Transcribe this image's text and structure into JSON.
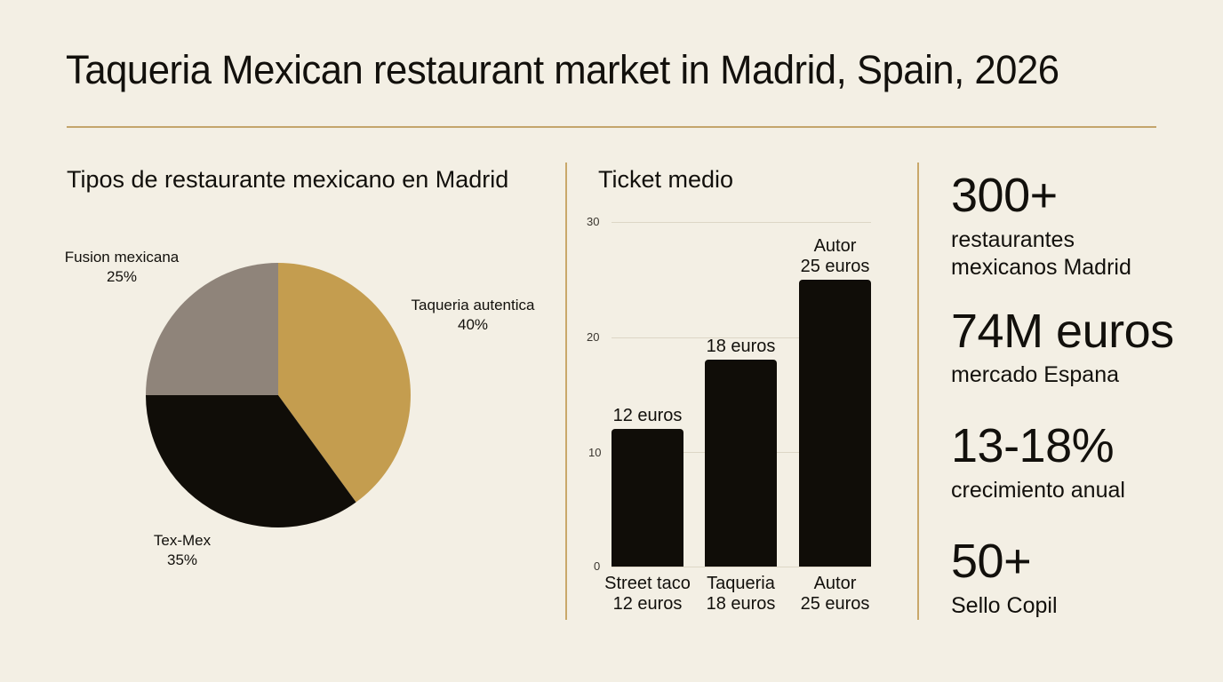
{
  "title": "Taqueria Mexican restaurant market in Madrid, Spain, 2026",
  "colors": {
    "background": "#f3efe4",
    "accent_rule": "#c4a56b",
    "gold": "#c49d4f",
    "taupe": "#8f847a",
    "black": "#100d08"
  },
  "pie": {
    "title": "Tipos de restaurante mexicano en Madrid",
    "slices": [
      {
        "label": "Taqueria autentica",
        "pct": "40%",
        "value": 40,
        "color": "#c49d4f"
      },
      {
        "label": "Tex-Mex",
        "pct": "35%",
        "value": 35,
        "color": "#100d08"
      },
      {
        "label": "Fusion mexicana",
        "pct": "25%",
        "value": 25,
        "color": "#8f847a"
      }
    ]
  },
  "bar": {
    "title": "Ticket medio",
    "ticks": [
      "30",
      "20",
      "10",
      "0"
    ],
    "bars": [
      {
        "category": "Street taco",
        "sub": "12 euros",
        "value": 12,
        "label": "12 euros",
        "label_top": ""
      },
      {
        "category": "Taqueria",
        "sub": "18 euros",
        "value": 18,
        "label": "18 euros",
        "label_top": ""
      },
      {
        "category": "Autor",
        "sub": "25 euros",
        "value": 25,
        "label": "25 euros",
        "label_top": "Autor"
      }
    ]
  },
  "stats": [
    {
      "value": "300+",
      "line1": "restaurantes",
      "line2": "mexicanos Madrid"
    },
    {
      "value": "74M euros",
      "line1": "mercado Espana",
      "line2": ""
    },
    {
      "value": "13-18%",
      "line1": "crecimiento anual",
      "line2": ""
    },
    {
      "value": "50+",
      "line1": "Sello Copil",
      "line2": ""
    }
  ],
  "chart_data": [
    {
      "type": "pie",
      "title": "Tipos de restaurante mexicano en Madrid",
      "categories": [
        "Taqueria autentica",
        "Tex-Mex",
        "Fusion mexicana"
      ],
      "values": [
        40,
        35,
        25
      ],
      "unit": "%",
      "colors": [
        "#c49d4f",
        "#100d08",
        "#8f847a"
      ]
    },
    {
      "type": "bar",
      "title": "Ticket medio",
      "categories": [
        "Street taco",
        "Taqueria",
        "Autor"
      ],
      "values": [
        12,
        18,
        25
      ],
      "data_labels": [
        "12 euros",
        "18 euros",
        "Autor 25 euros"
      ],
      "xlabel": "",
      "ylabel": "",
      "ylim": [
        0,
        30
      ],
      "yticks": [
        0,
        10,
        20,
        30
      ],
      "grid": true,
      "unit": "euros"
    }
  ]
}
